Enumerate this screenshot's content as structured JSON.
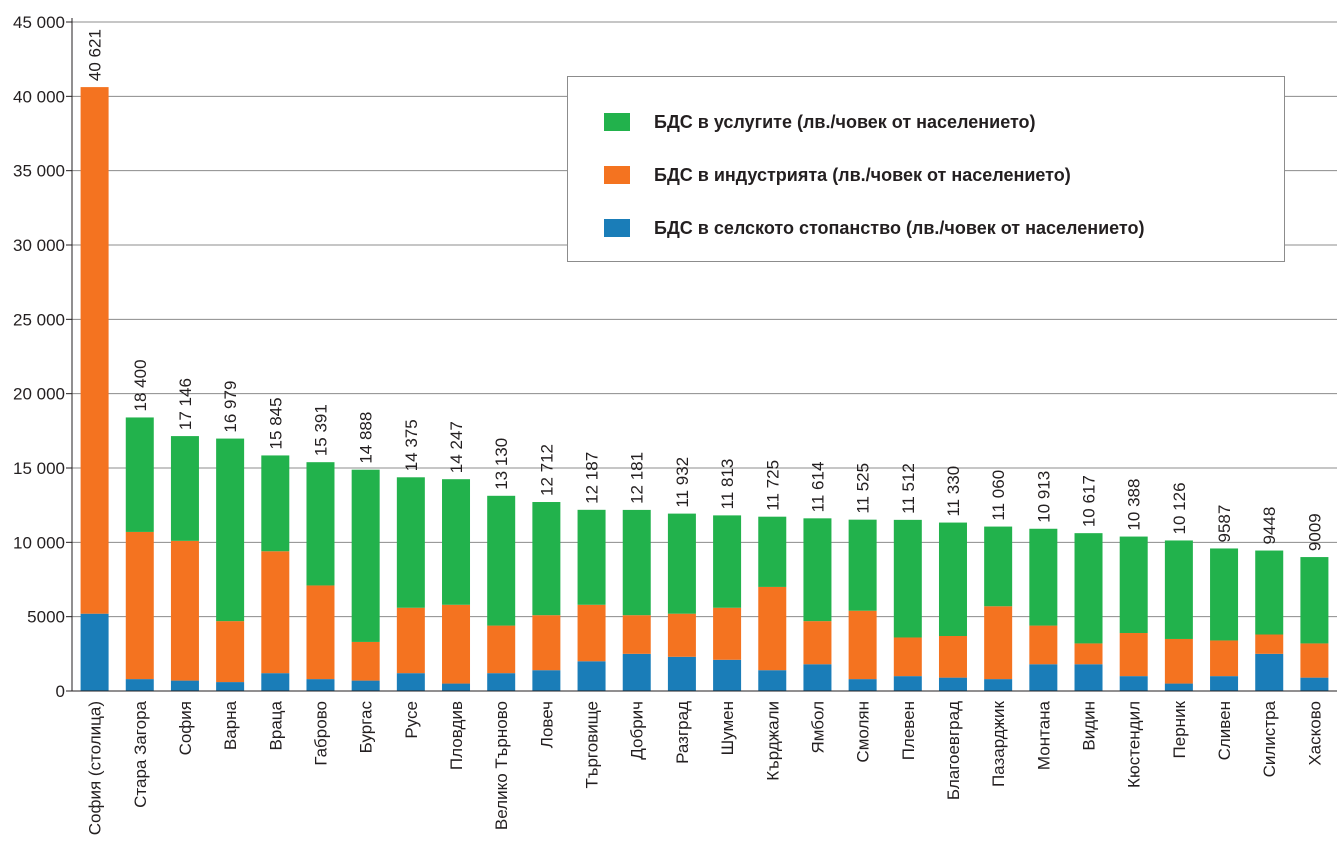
{
  "chart_data": {
    "type": "bar",
    "stacked": true,
    "categories": [
      "София (столица)",
      "Стара Загора",
      "София",
      "Варна",
      "Враца",
      "Габрово",
      "Бургас",
      "Русе",
      "Пловдив",
      "Велико Търново",
      "Ловеч",
      "Търговище",
      "Добрич",
      "Разград",
      "Шумен",
      "Кърджали",
      "Ямбол",
      "Смолян",
      "Плевен",
      "Благоевград",
      "Пазарджик",
      "Монтана",
      "Видин",
      "Кюстендил",
      "Перник",
      "Сливен",
      "Силистра",
      "Хасково"
    ],
    "series": [
      {
        "name": "БДС в селското стопанство (лв./човек от населението)",
        "color": "#1a7db8",
        "values": [
          5200,
          800,
          700,
          600,
          1200,
          800,
          700,
          1200,
          500,
          1200,
          1400,
          2000,
          2500,
          2300,
          2100,
          1400,
          1800,
          800,
          1000,
          900,
          800,
          1800,
          1800,
          1000,
          500,
          1000,
          2500,
          900
        ]
      },
      {
        "name": "БДС в индустрията (лв./човек от населението)",
        "color": "#f47320",
        "values": [
          35421,
          9900,
          9400,
          4100,
          8200,
          6300,
          2600,
          4400,
          5300,
          3200,
          3700,
          3800,
          2600,
          2900,
          3500,
          5600,
          2900,
          4600,
          2600,
          2800,
          4900,
          2600,
          1400,
          2900,
          3000,
          2400,
          1300,
          2300
        ]
      },
      {
        "name": "БДС в услугите (лв./човек от населението)",
        "color": "#22b24c",
        "values": [
          0,
          7700,
          7046,
          12279,
          6445,
          8291,
          11588,
          8775,
          8447,
          8730,
          7612,
          6387,
          7081,
          6732,
          6213,
          4725,
          6914,
          6125,
          7912,
          7630,
          5360,
          6513,
          7417,
          6488,
          6626,
          6187,
          5648,
          5809
        ]
      }
    ],
    "totals": [
      40621,
      18400,
      17146,
      16979,
      15845,
      15391,
      14888,
      14375,
      14247,
      13130,
      12712,
      12187,
      12181,
      11932,
      11813,
      11725,
      11614,
      11525,
      11512,
      11330,
      11060,
      10913,
      10617,
      10388,
      10126,
      9587,
      9448,
      9009
    ],
    "total_labels": [
      "40 621",
      "18 400",
      "17 146",
      "16 979",
      "15 845",
      "15 391",
      "14 888",
      "14 375",
      "14 247",
      "13 130",
      "12 712",
      "12 187",
      "12 181",
      "11 932",
      "11 813",
      "11 725",
      "11 614",
      "11 525",
      "11 512",
      "11 330",
      "11 060",
      "10 913",
      "10 617",
      "10 388",
      "10 126",
      "9587",
      "9448",
      "9009"
    ],
    "ylim": [
      0,
      45000
    ],
    "yticks": [
      0,
      5000,
      10000,
      15000,
      20000,
      25000,
      30000,
      35000,
      40000,
      45000
    ],
    "ytick_labels": [
      "0",
      "5000",
      "10 000",
      "15 000",
      "20 000",
      "25 000",
      "30 000",
      "35 000",
      "40 000",
      "45 000"
    ],
    "grid": true,
    "legend_position": "top-right",
    "legend_order": [
      2,
      1,
      0
    ]
  }
}
